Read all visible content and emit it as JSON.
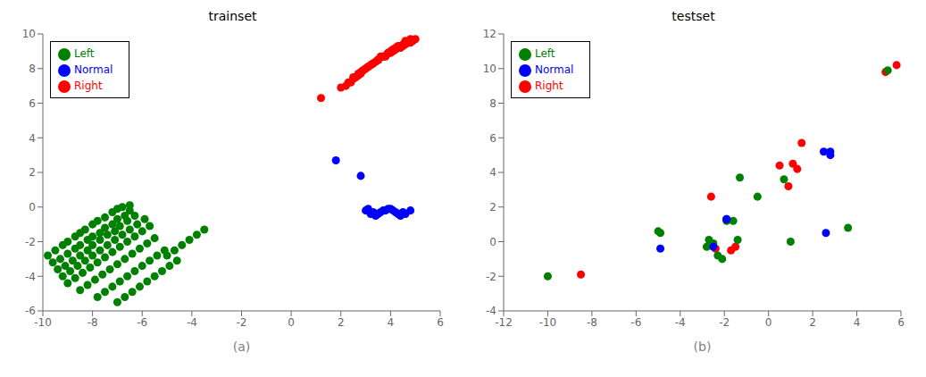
{
  "chart_data": [
    {
      "type": "scatter",
      "title": "trainset",
      "x_label": "(a)",
      "xlim": [
        -10,
        6
      ],
      "xticks": [
        -10,
        -8,
        -6,
        -4,
        -2,
        0,
        2,
        4,
        6
      ],
      "ylim": [
        -6,
        10
      ],
      "yticks": [
        -6,
        -4,
        -2,
        0,
        2,
        4,
        6,
        8,
        10
      ],
      "grid": false,
      "legend": "upper left",
      "series": [
        {
          "name": "Right",
          "color": "#FF0000",
          "x": [
            1.2,
            2.0,
            2.3,
            2.5,
            2.7,
            2.9,
            3.1,
            3.3,
            3.5,
            3.7,
            3.9,
            4.1,
            4.3,
            4.5,
            4.7,
            2.2,
            2.5,
            2.8,
            3.0,
            3.3,
            3.5,
            3.7,
            3.9,
            4.1,
            4.3,
            4.5,
            4.7,
            4.9,
            2.4,
            2.7,
            3.0,
            3.2,
            3.5,
            3.8,
            4.0,
            4.2,
            4.4,
            4.6,
            4.8,
            5.0,
            2.6,
            2.9,
            3.2,
            3.5,
            3.7,
            4.0,
            4.2,
            4.4,
            4.6,
            4.8,
            2.8,
            3.1,
            3.4,
            3.6,
            3.9,
            4.1,
            4.3,
            4.6
          ],
          "y": [
            6.3,
            6.9,
            7.2,
            7.5,
            7.7,
            7.9,
            8.1,
            8.3,
            8.5,
            8.7,
            8.9,
            9.1,
            9.2,
            9.4,
            9.5,
            7.0,
            7.4,
            7.7,
            8.0,
            8.3,
            8.5,
            8.7,
            8.9,
            9.0,
            9.2,
            9.3,
            9.5,
            9.6,
            7.2,
            7.6,
            8.0,
            8.2,
            8.5,
            8.7,
            8.9,
            9.1,
            9.2,
            9.4,
            9.5,
            9.7,
            7.5,
            7.9,
            8.2,
            8.5,
            8.7,
            9.0,
            9.2,
            9.3,
            9.5,
            9.7,
            7.8,
            8.1,
            8.4,
            8.7,
            8.9,
            9.1,
            9.3,
            9.6
          ]
        },
        {
          "name": "Left",
          "color": "#008000",
          "x": [
            -9.8,
            -9.5,
            -9.2,
            -9.0,
            -8.7,
            -8.5,
            -8.3,
            -8.0,
            -7.8,
            -7.5,
            -7.2,
            -7.0,
            -6.8,
            -6.5,
            -9.6,
            -9.3,
            -9.0,
            -8.7,
            -8.5,
            -8.2,
            -8.0,
            -7.7,
            -7.5,
            -7.2,
            -7.0,
            -6.7,
            -6.5,
            -9.4,
            -9.1,
            -8.8,
            -8.5,
            -8.2,
            -8.0,
            -7.7,
            -7.4,
            -7.1,
            -6.9,
            -6.6,
            -6.3,
            -9.2,
            -8.9,
            -8.6,
            -8.3,
            -8.0,
            -7.7,
            -7.4,
            -7.1,
            -6.8,
            -6.5,
            -6.2,
            -5.9,
            -9.0,
            -8.7,
            -8.4,
            -8.1,
            -7.8,
            -7.5,
            -7.2,
            -6.9,
            -6.6,
            -6.3,
            -6.0,
            -5.7,
            -8.5,
            -8.2,
            -7.9,
            -7.6,
            -7.3,
            -7.0,
            -6.7,
            -6.4,
            -6.1,
            -5.8,
            -5.5,
            -7.8,
            -7.5,
            -7.2,
            -6.9,
            -6.6,
            -6.3,
            -6.0,
            -5.7,
            -5.4,
            -5.1,
            -7.0,
            -6.7,
            -6.4,
            -6.1,
            -5.8,
            -5.5,
            -5.2,
            -4.9,
            -4.6,
            -5.0,
            -4.7,
            -4.4,
            -4.1,
            -3.8,
            -3.5
          ],
          "y": [
            -2.8,
            -2.5,
            -2.2,
            -2.0,
            -1.7,
            -1.5,
            -1.3,
            -1.0,
            -0.8,
            -0.6,
            -0.3,
            -0.1,
            0.0,
            0.1,
            -3.2,
            -3.0,
            -2.7,
            -2.4,
            -2.2,
            -1.9,
            -1.7,
            -1.5,
            -1.2,
            -1.0,
            -0.7,
            -0.5,
            -0.2,
            -3.6,
            -3.4,
            -3.1,
            -2.8,
            -2.5,
            -2.2,
            -1.9,
            -1.6,
            -1.4,
            -1.1,
            -0.8,
            -0.5,
            -4.0,
            -3.7,
            -3.4,
            -3.1,
            -2.8,
            -2.5,
            -2.2,
            -1.9,
            -1.6,
            -1.3,
            -1.0,
            -0.7,
            -4.4,
            -4.1,
            -3.8,
            -3.5,
            -3.2,
            -2.9,
            -2.6,
            -2.3,
            -2.0,
            -1.7,
            -1.4,
            -1.1,
            -4.8,
            -4.5,
            -4.2,
            -3.9,
            -3.6,
            -3.3,
            -3.0,
            -2.7,
            -2.4,
            -2.1,
            -1.8,
            -5.2,
            -4.9,
            -4.6,
            -4.3,
            -4.0,
            -3.7,
            -3.4,
            -3.1,
            -2.8,
            -2.5,
            -5.5,
            -5.2,
            -4.9,
            -4.6,
            -4.3,
            -4.0,
            -3.7,
            -3.4,
            -3.1,
            -2.8,
            -2.5,
            -2.2,
            -1.9,
            -1.6,
            -1.3
          ]
        },
        {
          "name": "Normal",
          "color": "#0000FF",
          "x": [
            1.8,
            2.8,
            3.0,
            3.2,
            3.4,
            3.6,
            3.8,
            4.0,
            4.2,
            4.4,
            4.6,
            4.8,
            3.1,
            3.3,
            3.5,
            3.7,
            3.9,
            4.1,
            4.3,
            4.5
          ],
          "y": [
            2.7,
            1.8,
            -0.2,
            -0.4,
            -0.5,
            -0.3,
            -0.2,
            -0.1,
            -0.3,
            -0.5,
            -0.4,
            -0.2,
            -0.1,
            -0.3,
            -0.4,
            -0.2,
            -0.1,
            -0.2,
            -0.4,
            -0.3
          ]
        }
      ]
    },
    {
      "type": "scatter",
      "title": "testset",
      "x_label": "(b)",
      "xlim": [
        -12,
        6
      ],
      "xticks": [
        -12,
        -10,
        -8,
        -6,
        -4,
        -2,
        0,
        2,
        4,
        6
      ],
      "ylim": [
        -4,
        12
      ],
      "yticks": [
        -4,
        -2,
        0,
        2,
        4,
        6,
        8,
        10,
        12
      ],
      "grid": false,
      "legend": "upper left",
      "series": [
        {
          "name": "Right",
          "color": "#FF0000",
          "x": [
            -8.5,
            5.8,
            5.3,
            0.9,
            1.3,
            1.5,
            1.1,
            -1.5,
            -1.7,
            -2.6,
            0.5,
            -2.4
          ],
          "y": [
            -1.9,
            10.2,
            9.8,
            3.2,
            4.2,
            5.7,
            4.5,
            -0.3,
            -0.5,
            2.6,
            4.4,
            -0.4
          ]
        },
        {
          "name": "Left",
          "color": "#008000",
          "x": [
            -10.0,
            -5.0,
            -4.9,
            -2.5,
            -2.6,
            -2.7,
            -2.8,
            -2.3,
            -2.1,
            -1.9,
            -1.6,
            -1.4,
            -1.3,
            -0.5,
            0.7,
            1.0,
            3.6,
            5.4
          ],
          "y": [
            -2.0,
            0.6,
            0.5,
            -0.1,
            -0.2,
            0.1,
            -0.3,
            -0.8,
            -1.0,
            1.2,
            1.2,
            0.1,
            3.7,
            2.6,
            3.6,
            0.0,
            0.8,
            9.9
          ]
        },
        {
          "name": "Normal",
          "color": "#0000FF",
          "x": [
            -4.9,
            -2.5,
            -1.9,
            -1.9,
            2.6,
            2.8,
            2.8,
            2.5
          ],
          "y": [
            -0.4,
            -0.3,
            1.3,
            1.3,
            0.5,
            5.2,
            5.0,
            5.2
          ]
        }
      ]
    }
  ]
}
